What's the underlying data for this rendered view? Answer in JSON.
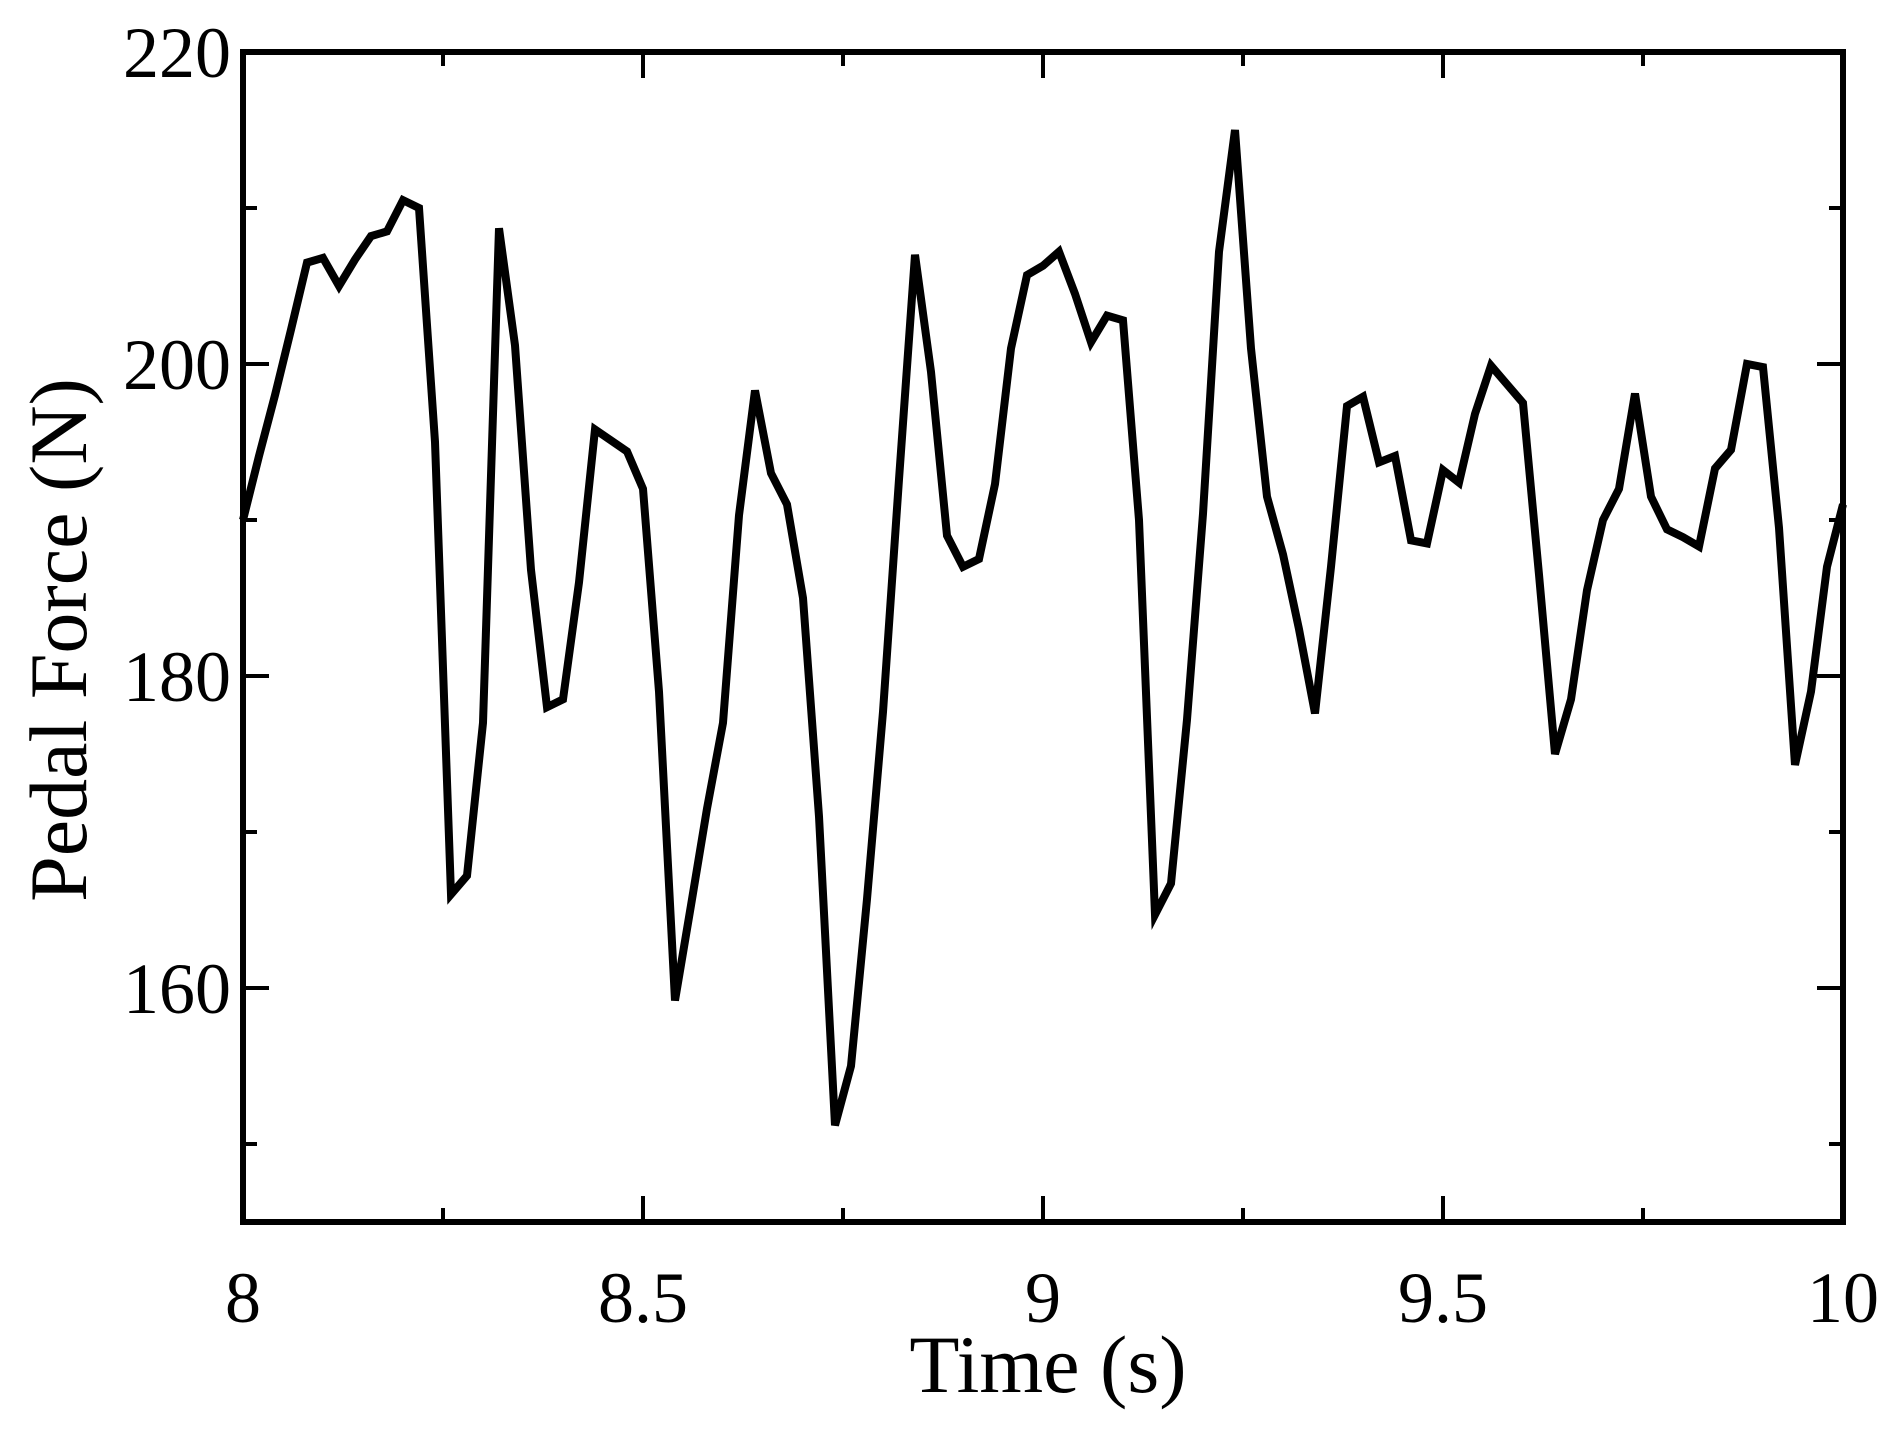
{
  "chart_data": {
    "type": "line",
    "xlabel": "Time (s)",
    "ylabel": "Pedal Force (N)",
    "xlim": [
      8,
      10
    ],
    "ylim": [
      145,
      220
    ],
    "x_major_ticks": [
      8,
      8.5,
      9,
      9.5,
      10
    ],
    "x_minor_ticks": [
      8.25,
      8.75,
      9.25,
      9.75
    ],
    "y_major_ticks": [
      160,
      180,
      200,
      220
    ],
    "y_minor_ticks": [
      150,
      170,
      190,
      210
    ],
    "grid": false,
    "line_color": "#000000",
    "series": [
      {
        "x": [
          8.0,
          8.02,
          8.04,
          8.06,
          8.08,
          8.1,
          8.12,
          8.14,
          8.16,
          8.18,
          8.2,
          8.22,
          8.24,
          8.26,
          8.28,
          8.3,
          8.32,
          8.34,
          8.36,
          8.38,
          8.4,
          8.42,
          8.44,
          8.46,
          8.48,
          8.5,
          8.52,
          8.54,
          8.56,
          8.58,
          8.6,
          8.62,
          8.64,
          8.66,
          8.68,
          8.7,
          8.72,
          8.74,
          8.76,
          8.78,
          8.8,
          8.82,
          8.84,
          8.86,
          8.88,
          8.9,
          8.92,
          8.94,
          8.96,
          8.98,
          9.0,
          9.02,
          9.04,
          9.06,
          9.08,
          9.1,
          9.12,
          9.14,
          9.16,
          9.18,
          9.2,
          9.22,
          9.24,
          9.26,
          9.28,
          9.3,
          9.32,
          9.34,
          9.36,
          9.38,
          9.4,
          9.42,
          9.44,
          9.46,
          9.48,
          9.5,
          9.52,
          9.54,
          9.56,
          9.58,
          9.6,
          9.62,
          9.64,
          9.66,
          9.68,
          9.7,
          9.72,
          9.74,
          9.76,
          9.78,
          9.8,
          9.82,
          9.84,
          9.86,
          9.88,
          9.9,
          9.92,
          9.94,
          9.96,
          9.98,
          10.0
        ],
        "y": [
          190.0,
          194.1,
          198.0,
          202.2,
          206.5,
          206.8,
          205.0,
          206.7,
          208.2,
          208.5,
          210.5,
          210.0,
          195.0,
          166.0,
          167.2,
          177.0,
          208.7,
          201.2,
          186.8,
          178.0,
          178.5,
          186.0,
          195.8,
          195.1,
          194.4,
          192.0,
          179.0,
          159.2,
          165.3,
          171.5,
          177.0,
          190.3,
          198.3,
          193.0,
          191.0,
          185.0,
          171.0,
          151.2,
          155.0,
          165.7,
          177.7,
          192.6,
          207.0,
          199.5,
          189.0,
          187.0,
          187.5,
          192.3,
          201.0,
          205.7,
          206.3,
          207.2,
          204.5,
          201.4,
          203.1,
          202.8,
          190.0,
          164.7,
          166.7,
          177.2,
          190.4,
          207.2,
          215.0,
          201.0,
          191.5,
          187.8,
          183.0,
          177.6,
          187.0,
          197.3,
          197.9,
          193.7,
          194.1,
          188.7,
          188.5,
          193.2,
          192.4,
          196.8,
          199.9,
          198.7,
          197.5,
          186.5,
          175.0,
          178.5,
          185.5,
          190.0,
          192.0,
          198.1,
          191.5,
          189.4,
          188.9,
          188.3,
          193.3,
          194.5,
          200.0,
          199.8,
          189.5,
          174.3,
          179.0,
          187.0,
          191.0
        ]
      }
    ]
  }
}
